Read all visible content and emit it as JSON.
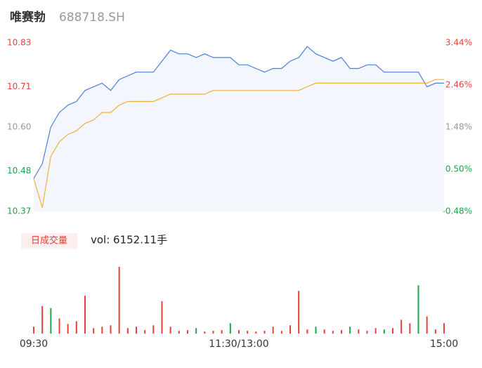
{
  "chart_data": [
    {
      "type": "line",
      "title": "唯赛勃",
      "subtitle": "688718.SH",
      "x": [
        0,
        5,
        10,
        15,
        20,
        25,
        30,
        35,
        40,
        45,
        50,
        55,
        60,
        65,
        70,
        75,
        80,
        85,
        90,
        95,
        100,
        105,
        110,
        115,
        120,
        125,
        130,
        135,
        140,
        145,
        150,
        155,
        160,
        165,
        170,
        175,
        180,
        185,
        190,
        195,
        200,
        205,
        210,
        215,
        220,
        225,
        230,
        235,
        240
      ],
      "series": [
        {
          "name": "price",
          "color": "#4a7fdc",
          "values": [
            10.46,
            10.5,
            10.6,
            10.64,
            10.66,
            10.67,
            10.7,
            10.71,
            10.72,
            10.7,
            10.73,
            10.74,
            10.75,
            10.75,
            10.75,
            10.78,
            10.81,
            10.8,
            10.8,
            10.79,
            10.8,
            10.79,
            10.79,
            10.79,
            10.77,
            10.77,
            10.76,
            10.75,
            10.76,
            10.76,
            10.78,
            10.79,
            10.82,
            10.8,
            10.79,
            10.78,
            10.79,
            10.76,
            10.76,
            10.77,
            10.77,
            10.75,
            10.75,
            10.75,
            10.75,
            10.75,
            10.71,
            10.72,
            10.72
          ]
        },
        {
          "name": "average",
          "color": "#f0b040",
          "values": [
            10.46,
            10.38,
            10.52,
            10.56,
            10.58,
            10.59,
            10.61,
            10.62,
            10.64,
            10.64,
            10.66,
            10.67,
            10.67,
            10.67,
            10.67,
            10.68,
            10.69,
            10.69,
            10.69,
            10.69,
            10.69,
            10.7,
            10.7,
            10.7,
            10.7,
            10.7,
            10.7,
            10.7,
            10.7,
            10.7,
            10.7,
            10.7,
            10.71,
            10.72,
            10.72,
            10.72,
            10.72,
            10.72,
            10.72,
            10.72,
            10.72,
            10.72,
            10.72,
            10.72,
            10.72,
            10.72,
            10.72,
            10.73,
            10.73
          ]
        }
      ],
      "fill_color": "#f3f6fc",
      "xlim": [
        0,
        240
      ],
      "ylim": [
        10.37,
        10.83
      ],
      "yticks": [
        {
          "value": 10.83,
          "label": "10.83"
        },
        {
          "value": 10.71,
          "label": "10.71"
        },
        {
          "value": 10.6,
          "label": "10.60"
        },
        {
          "value": 10.48,
          "label": "10.48"
        },
        {
          "value": 10.37,
          "label": "10.37"
        }
      ],
      "y2lim": [
        -0.48,
        3.44
      ],
      "y2ticks": [
        {
          "value": 3.44,
          "label": "3.44%"
        },
        {
          "value": 2.46,
          "label": "2.46%"
        },
        {
          "value": 1.48,
          "label": "1.48%"
        },
        {
          "value": 0.5,
          "label": "0.50%"
        },
        {
          "value": -0.48,
          "label": "-0.48%"
        }
      ],
      "tick_colors": [
        "#e8403a",
        "#e8403a",
        "#999999",
        "#1aa64a",
        "#1aa64a"
      ]
    },
    {
      "type": "bar",
      "label": "日成交量",
      "annotation": "vol: 6152.11手",
      "x": [
        0,
        5,
        10,
        15,
        20,
        25,
        30,
        35,
        40,
        45,
        50,
        55,
        60,
        65,
        70,
        75,
        80,
        85,
        90,
        95,
        100,
        105,
        110,
        115,
        120,
        125,
        130,
        135,
        140,
        145,
        150,
        155,
        160,
        165,
        170,
        175,
        180,
        185,
        190,
        195,
        200,
        205,
        210,
        215,
        220,
        225,
        230,
        235,
        240
      ],
      "values": [
        10,
        40,
        37,
        22,
        14,
        18,
        55,
        8,
        10,
        12,
        97,
        8,
        10,
        5,
        12,
        47,
        10,
        4,
        5,
        8,
        3,
        4,
        5,
        15,
        5,
        4,
        3,
        4,
        10,
        4,
        12,
        62,
        6,
        10,
        6,
        4,
        5,
        10,
        6,
        4,
        8,
        6,
        8,
        20,
        15,
        70,
        25,
        6,
        15
      ],
      "colors": [
        "#e8403a",
        "#e8403a",
        "#1aa64a",
        "#e8403a",
        "#e8403a",
        "#e8403a",
        "#e8403a",
        "#e8403a",
        "#e8403a",
        "#e8403a",
        "#e8403a",
        "#e8403a",
        "#e8403a",
        "#e8403a",
        "#e8403a",
        "#e8403a",
        "#e8403a",
        "#e8403a",
        "#e8403a",
        "#1aa64a",
        "#e8403a",
        "#e8403a",
        "#e8403a",
        "#1aa64a",
        "#e8403a",
        "#e8403a",
        "#e8403a",
        "#e8403a",
        "#e8403a",
        "#e8403a",
        "#e8403a",
        "#e8403a",
        "#e8403a",
        "#1aa64a",
        "#e8403a",
        "#e8403a",
        "#e8403a",
        "#1aa64a",
        "#e8403a",
        "#e8403a",
        "#e8403a",
        "#1aa64a",
        "#e8403a",
        "#e8403a",
        "#e8403a",
        "#1aa64a",
        "#e8403a",
        "#e8403a",
        "#e8403a"
      ],
      "xlim": [
        0,
        240
      ],
      "ylim": [
        0,
        100
      ],
      "xticks": [
        {
          "value": 0,
          "label": "09:30"
        },
        {
          "value": 120,
          "label": "11:30/13:00"
        },
        {
          "value": 240,
          "label": "15:00"
        }
      ]
    }
  ]
}
